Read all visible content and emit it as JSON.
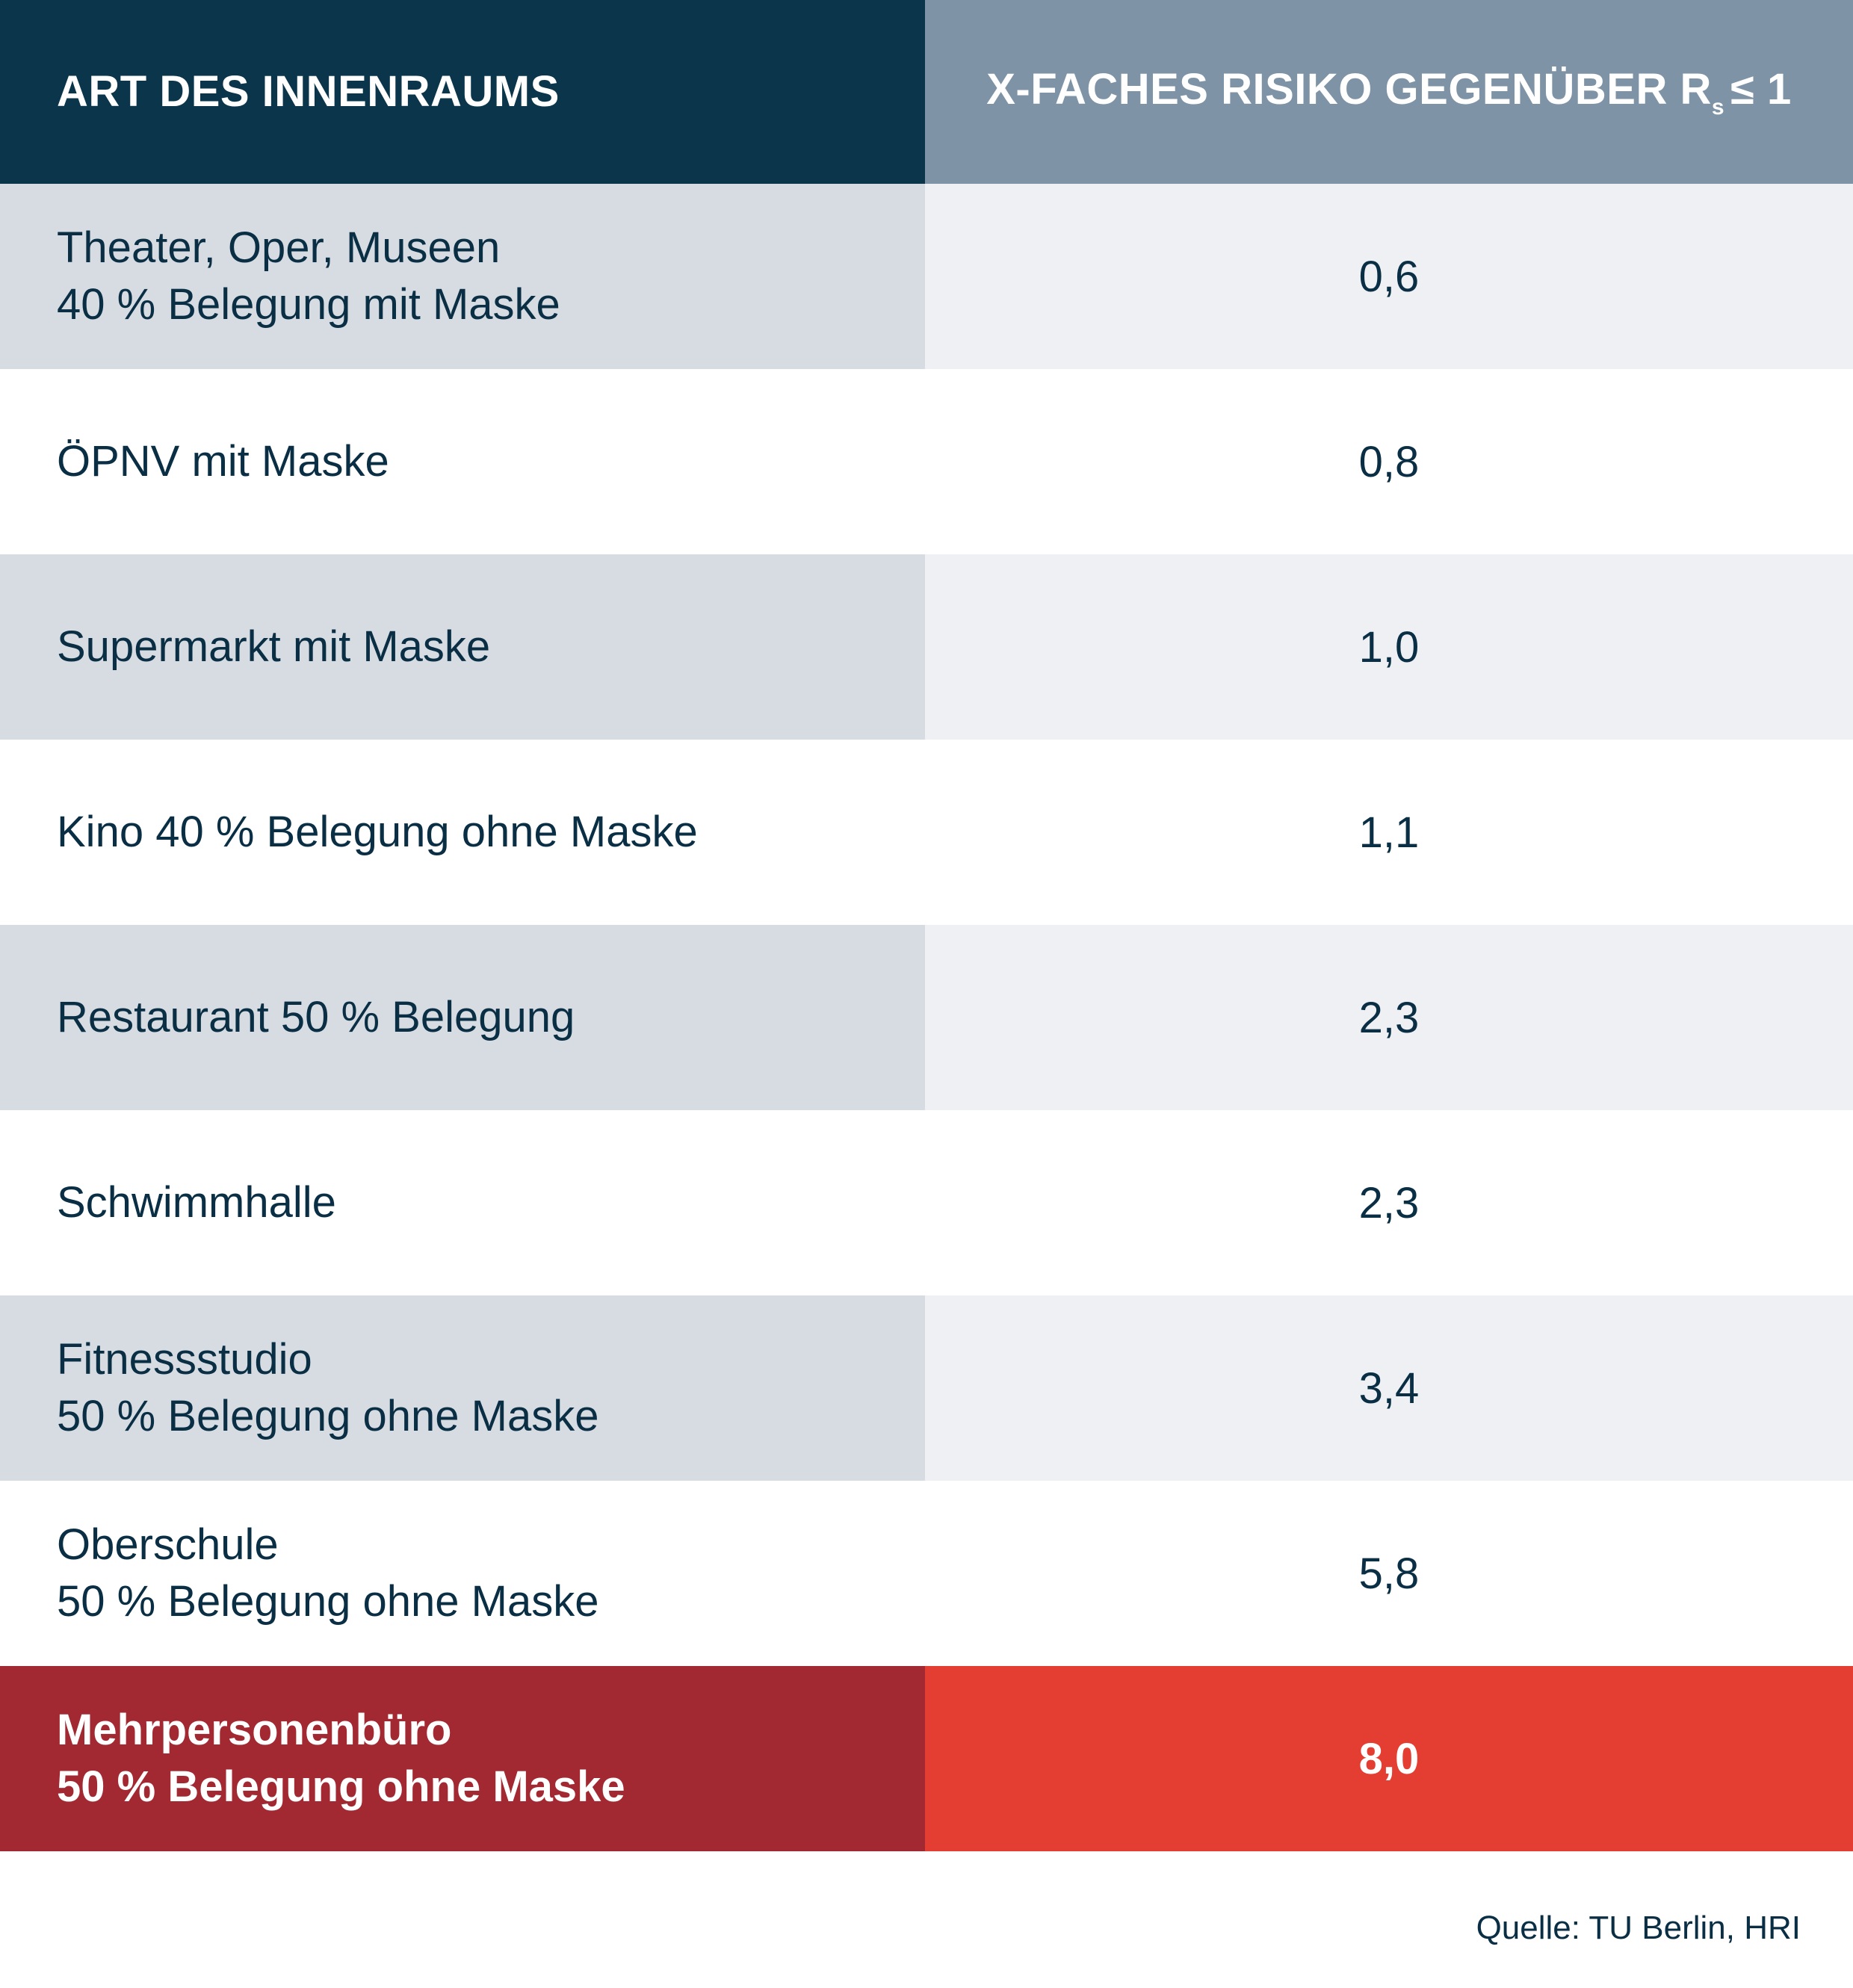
{
  "chart_data": {
    "type": "table",
    "columns": [
      "ART DES INNENRAUMS",
      {
        "text": "X-FACHES RISIKO GEGENÜBER R",
        "sub": "s",
        "suffix": "≤ 1"
      }
    ],
    "rows": [
      {
        "room": [
          "Theater, Oper, Museen",
          "40 % Belegung mit Maske"
        ],
        "risk": "0,6",
        "value": 0.6,
        "highlight": false
      },
      {
        "room": [
          "ÖPNV mit Maske"
        ],
        "risk": "0,8",
        "value": 0.8,
        "highlight": false
      },
      {
        "room": [
          "Supermarkt mit Maske"
        ],
        "risk": "1,0",
        "value": 1.0,
        "highlight": false
      },
      {
        "room": [
          "Kino 40 % Belegung ohne Maske"
        ],
        "risk": "1,1",
        "value": 1.1,
        "highlight": false
      },
      {
        "room": [
          "Restaurant 50 % Belegung"
        ],
        "risk": "2,3",
        "value": 2.3,
        "highlight": false
      },
      {
        "room": [
          "Schwimmhalle"
        ],
        "risk": "2,3",
        "value": 2.3,
        "highlight": false
      },
      {
        "room": [
          "Fitnessstudio",
          "50 % Belegung ohne Maske"
        ],
        "risk": "3,4",
        "value": 3.4,
        "highlight": false
      },
      {
        "room": [
          "Oberschule",
          "50 % Belegung ohne Maske"
        ],
        "risk": "5,8",
        "value": 5.8,
        "highlight": false
      },
      {
        "room": [
          "Mehrpersonenbüro",
          "50 % Belegung ohne Maske"
        ],
        "risk": "8,0",
        "value": 8.0,
        "highlight": true
      }
    ],
    "source": "Quelle: TU Berlin, HRI"
  },
  "colors": {
    "header_left": "#0a354b",
    "header_right": "#7f93a6",
    "row_odd_left": "#d7dce3",
    "row_odd_right": "#eef0f4",
    "row_even": "#ffffff",
    "highlight_left": "#a22832",
    "highlight_right": "#e43d31",
    "text_dark": "#0a2f45"
  }
}
